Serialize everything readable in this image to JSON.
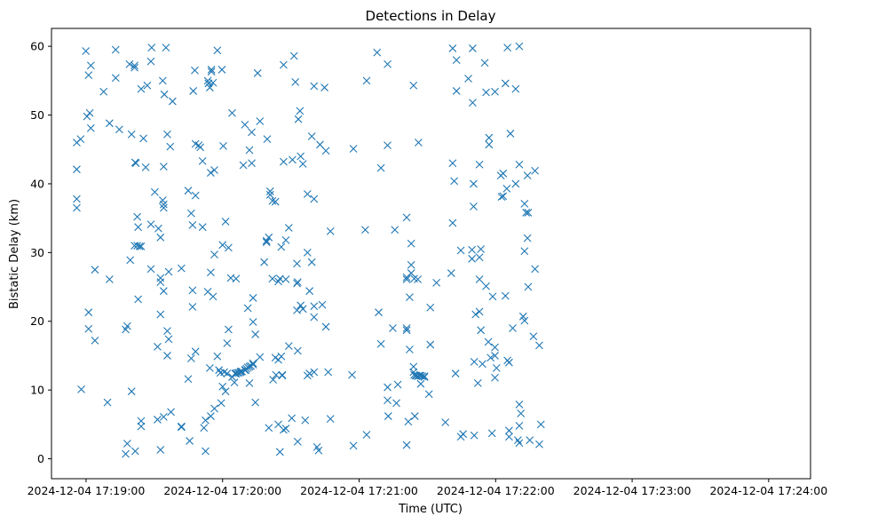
{
  "chart_data": {
    "type": "scatter",
    "title": "Detections in Delay",
    "xlabel": "Time (UTC)",
    "ylabel": "Bistatic Delay (km)",
    "marker": "x",
    "color": "#1f77b4",
    "grid": false,
    "x_unit": "seconds since 2024-12-04 17:19:00 UTC",
    "xlim": [
      -15.2,
      318.4
    ],
    "ylim": [
      -2.9,
      62.6
    ],
    "xticks": [
      {
        "value": 0,
        "label": "2024-12-04 17:19:00"
      },
      {
        "value": 60,
        "label": "2024-12-04 17:20:00"
      },
      {
        "value": 120,
        "label": "2024-12-04 17:21:00"
      },
      {
        "value": 180,
        "label": "2024-12-04 17:22:00"
      },
      {
        "value": 240,
        "label": "2024-12-04 17:23:00"
      },
      {
        "value": 300,
        "label": "2024-12-04 17:24:00"
      }
    ],
    "yticks": [
      {
        "value": 0,
        "label": "0"
      },
      {
        "value": 10,
        "label": "10"
      },
      {
        "value": 20,
        "label": "20"
      },
      {
        "value": 30,
        "label": "30"
      },
      {
        "value": 40,
        "label": "40"
      },
      {
        "value": 50,
        "label": "50"
      },
      {
        "value": 60,
        "label": "60"
      }
    ],
    "points": [
      [
        -4.1,
        46.0
      ],
      [
        -4.1,
        42.1
      ],
      [
        -4.1,
        37.8
      ],
      [
        -4.1,
        36.5
      ],
      [
        -2.4,
        46.5
      ],
      [
        -2.1,
        10.1
      ],
      [
        -0.1,
        59.3
      ],
      [
        0.4,
        49.8
      ],
      [
        1.1,
        55.8
      ],
      [
        1.6,
        50.3
      ],
      [
        1.1,
        21.3
      ],
      [
        1.1,
        18.9
      ],
      [
        2.1,
        57.2
      ],
      [
        2.1,
        48.1
      ],
      [
        3.9,
        27.5
      ],
      [
        3.9,
        17.2
      ],
      [
        7.7,
        53.4
      ],
      [
        9.4,
        8.2
      ],
      [
        10.3,
        26.1
      ],
      [
        10.3,
        48.8
      ],
      [
        13.0,
        59.5
      ],
      [
        13.0,
        55.4
      ],
      [
        14.6,
        47.9
      ],
      [
        17.4,
        0.7
      ],
      [
        17.4,
        18.8
      ],
      [
        18.1,
        2.2
      ],
      [
        18.1,
        19.3
      ],
      [
        19.1,
        57.4
      ],
      [
        19.4,
        28.9
      ],
      [
        20.0,
        47.2
      ],
      [
        20.0,
        9.8
      ],
      [
        21.3,
        57.2
      ],
      [
        21.3,
        56.9
      ],
      [
        21.3,
        31.0
      ],
      [
        21.6,
        43.1
      ],
      [
        21.6,
        1.1
      ],
      [
        21.9,
        43.0
      ],
      [
        22.5,
        35.2
      ],
      [
        22.5,
        31.0
      ],
      [
        22.9,
        33.7
      ],
      [
        22.9,
        23.2
      ],
      [
        23.5,
        30.9
      ],
      [
        24.2,
        53.8
      ],
      [
        24.2,
        30.9
      ],
      [
        24.2,
        5.5
      ],
      [
        24.2,
        4.7
      ],
      [
        25.2,
        46.6
      ],
      [
        26.2,
        42.4
      ],
      [
        26.9,
        54.3
      ],
      [
        28.5,
        57.8
      ],
      [
        28.8,
        59.8
      ],
      [
        28.5,
        34.1
      ],
      [
        28.5,
        27.6
      ],
      [
        30.2,
        38.8
      ],
      [
        31.8,
        33.5
      ],
      [
        31.4,
        16.3
      ],
      [
        31.4,
        5.7
      ],
      [
        32.7,
        26.3
      ],
      [
        32.7,
        25.7
      ],
      [
        32.7,
        32.2
      ],
      [
        32.7,
        21.0
      ],
      [
        32.7,
        1.3
      ],
      [
        33.7,
        55.0
      ],
      [
        33.7,
        37.6
      ],
      [
        34.4,
        53.0
      ],
      [
        34.1,
        42.5
      ],
      [
        34.1,
        36.5
      ],
      [
        34.1,
        37.0
      ],
      [
        34.1,
        24.4
      ],
      [
        34.1,
        6.1
      ],
      [
        35.1,
        59.8
      ],
      [
        35.7,
        47.2
      ],
      [
        35.7,
        18.6
      ],
      [
        35.7,
        15.0
      ],
      [
        36.3,
        27.2
      ],
      [
        36.3,
        17.4
      ],
      [
        37.0,
        45.4
      ],
      [
        37.3,
        6.8
      ],
      [
        38.0,
        52.0
      ],
      [
        41.9,
        27.7
      ],
      [
        41.9,
        4.7
      ],
      [
        41.9,
        4.6
      ],
      [
        44.9,
        39.0
      ],
      [
        44.9,
        11.6
      ],
      [
        45.5,
        2.6
      ],
      [
        46.2,
        35.7
      ],
      [
        46.2,
        14.6
      ],
      [
        46.8,
        34.0
      ],
      [
        46.8,
        24.5
      ],
      [
        46.8,
        22.1
      ],
      [
        47.1,
        53.5
      ],
      [
        47.8,
        56.5
      ],
      [
        48.1,
        45.8
      ],
      [
        48.1,
        38.3
      ],
      [
        48.1,
        15.6
      ],
      [
        49.5,
        45.6
      ],
      [
        50.2,
        45.3
      ],
      [
        51.2,
        33.7
      ],
      [
        51.2,
        43.3
      ],
      [
        51.8,
        4.5
      ],
      [
        52.5,
        1.1
      ],
      [
        52.5,
        5.6
      ],
      [
        53.5,
        55.0
      ],
      [
        53.5,
        24.3
      ],
      [
        53.8,
        54.6
      ],
      [
        54.4,
        54.0
      ],
      [
        54.4,
        13.2
      ],
      [
        54.8,
        41.6
      ],
      [
        54.8,
        27.1
      ],
      [
        54.8,
        6.2
      ],
      [
        55.1,
        56.3
      ],
      [
        55.1,
        56.6
      ],
      [
        55.8,
        54.7
      ],
      [
        55.8,
        23.6
      ],
      [
        56.4,
        42.0
      ],
      [
        56.4,
        29.7
      ],
      [
        56.4,
        7.3
      ],
      [
        57.7,
        59.4
      ],
      [
        57.7,
        14.9
      ],
      [
        58.4,
        12.9
      ],
      [
        59.0,
        12.5
      ],
      [
        59.4,
        8.1
      ],
      [
        59.7,
        56.6
      ],
      [
        60.0,
        31.1
      ],
      [
        60.0,
        10.5
      ],
      [
        60.3,
        45.5
      ],
      [
        60.7,
        12.6
      ],
      [
        61.3,
        34.5
      ],
      [
        61.3,
        9.8
      ],
      [
        62.0,
        12.4
      ],
      [
        62.0,
        16.8
      ],
      [
        62.6,
        30.7
      ],
      [
        62.6,
        18.8
      ],
      [
        63.6,
        26.3
      ],
      [
        64.2,
        11.9
      ],
      [
        64.2,
        50.3
      ],
      [
        65.2,
        11.1
      ],
      [
        65.5,
        12.4
      ],
      [
        65.9,
        26.2
      ],
      [
        65.9,
        12.4
      ],
      [
        66.5,
        12.5
      ],
      [
        67.2,
        12.5
      ],
      [
        67.8,
        12.6
      ],
      [
        68.1,
        12.7
      ],
      [
        68.5,
        12.7
      ],
      [
        69.1,
        42.7
      ],
      [
        69.8,
        48.6
      ],
      [
        69.8,
        12.9
      ],
      [
        70.1,
        12.9
      ],
      [
        70.5,
        13.1
      ],
      [
        71.1,
        21.9
      ],
      [
        71.1,
        13.3
      ],
      [
        71.8,
        44.9
      ],
      [
        71.8,
        11.0
      ],
      [
        71.8,
        13.4
      ],
      [
        72.4,
        13.5
      ],
      [
        72.8,
        43.0
      ],
      [
        72.8,
        47.5
      ],
      [
        73.4,
        23.4
      ],
      [
        73.4,
        13.7
      ],
      [
        73.4,
        13.9
      ],
      [
        73.4,
        19.9
      ],
      [
        74.4,
        8.2
      ],
      [
        74.4,
        18.1
      ],
      [
        75.4,
        56.1
      ],
      [
        76.4,
        14.8
      ],
      [
        76.4,
        49.1
      ],
      [
        78.3,
        28.6
      ],
      [
        79.3,
        31.5
      ],
      [
        79.3,
        31.7
      ],
      [
        79.6,
        46.5
      ],
      [
        80.3,
        32.2
      ],
      [
        80.3,
        4.5
      ],
      [
        80.9,
        38.9
      ],
      [
        80.9,
        38.4
      ],
      [
        81.9,
        37.5
      ],
      [
        81.9,
        26.2
      ],
      [
        82.2,
        11.5
      ],
      [
        83.2,
        37.4
      ],
      [
        83.2,
        14.7
      ],
      [
        83.5,
        12.2
      ],
      [
        84.5,
        25.8
      ],
      [
        84.5,
        14.4
      ],
      [
        84.5,
        5.0
      ],
      [
        85.2,
        26.2
      ],
      [
        85.2,
        1.0
      ],
      [
        85.8,
        30.8
      ],
      [
        85.8,
        14.9
      ],
      [
        86.2,
        12.2
      ],
      [
        86.2,
        12.1
      ],
      [
        86.8,
        43.2
      ],
      [
        86.8,
        57.3
      ],
      [
        86.8,
        4.2
      ],
      [
        87.8,
        31.8
      ],
      [
        87.8,
        26.1
      ],
      [
        87.8,
        4.4
      ],
      [
        89.1,
        33.6
      ],
      [
        89.1,
        16.4
      ],
      [
        90.7,
        43.5
      ],
      [
        90.4,
        5.9
      ],
      [
        91.4,
        58.6
      ],
      [
        92.0,
        54.8
      ],
      [
        92.7,
        25.5
      ],
      [
        92.7,
        28.4
      ],
      [
        92.7,
        21.6
      ],
      [
        93.0,
        25.7
      ],
      [
        93.0,
        15.7
      ],
      [
        93.0,
        2.5
      ],
      [
        93.3,
        49.4
      ],
      [
        94.0,
        50.6
      ],
      [
        94.3,
        44.0
      ],
      [
        94.3,
        22.3
      ],
      [
        95.3,
        42.9
      ],
      [
        95.3,
        21.8
      ],
      [
        96.3,
        5.6
      ],
      [
        97.3,
        30.0
      ],
      [
        97.3,
        38.5
      ],
      [
        97.3,
        12.1
      ],
      [
        98.2,
        24.4
      ],
      [
        98.2,
        12.4
      ],
      [
        99.2,
        46.9
      ],
      [
        99.2,
        28.6
      ],
      [
        100.2,
        54.2
      ],
      [
        100.2,
        37.8
      ],
      [
        100.2,
        22.2
      ],
      [
        100.2,
        20.6
      ],
      [
        100.2,
        12.6
      ],
      [
        101.5,
        1.7
      ],
      [
        102.2,
        1.2
      ],
      [
        102.8,
        45.7
      ],
      [
        103.8,
        22.4
      ],
      [
        104.8,
        54.0
      ],
      [
        105.4,
        44.8
      ],
      [
        105.4,
        19.2
      ],
      [
        106.4,
        12.6
      ],
      [
        107.4,
        33.1
      ],
      [
        107.4,
        5.8
      ],
      [
        116.9,
        12.2
      ],
      [
        117.5,
        45.1
      ],
      [
        117.5,
        1.9
      ],
      [
        122.7,
        33.3
      ],
      [
        123.3,
        55.0
      ],
      [
        123.3,
        3.5
      ],
      [
        127.9,
        59.1
      ],
      [
        128.6,
        21.3
      ],
      [
        129.6,
        16.7
      ],
      [
        129.6,
        42.3
      ],
      [
        132.5,
        57.4
      ],
      [
        132.5,
        45.6
      ],
      [
        132.5,
        10.4
      ],
      [
        132.5,
        8.5
      ],
      [
        132.8,
        6.2
      ],
      [
        134.8,
        19.0
      ],
      [
        135.7,
        33.3
      ],
      [
        136.4,
        8.1
      ],
      [
        137.0,
        10.8
      ],
      [
        140.9,
        35.1
      ],
      [
        140.9,
        26.4
      ],
      [
        140.9,
        26.1
      ],
      [
        140.9,
        19.0
      ],
      [
        140.9,
        18.7
      ],
      [
        140.9,
        2.0
      ],
      [
        141.6,
        5.4
      ],
      [
        142.2,
        23.5
      ],
      [
        142.2,
        15.9
      ],
      [
        142.9,
        31.3
      ],
      [
        142.9,
        28.2
      ],
      [
        142.9,
        27.0
      ],
      [
        143.9,
        54.3
      ],
      [
        143.9,
        13.4
      ],
      [
        143.9,
        12.6
      ],
      [
        144.2,
        26.2
      ],
      [
        144.2,
        12.2
      ],
      [
        144.5,
        6.2
      ],
      [
        144.8,
        12.1
      ],
      [
        145.2,
        12.1
      ],
      [
        145.8,
        26.1
      ],
      [
        145.8,
        12.0
      ],
      [
        146.1,
        46.0
      ],
      [
        146.5,
        12.1
      ],
      [
        147.1,
        12.1
      ],
      [
        147.1,
        10.9
      ],
      [
        147.8,
        12.0
      ],
      [
        148.7,
        11.9
      ],
      [
        148.7,
        12.0
      ],
      [
        150.7,
        9.4
      ],
      [
        151.3,
        22.0
      ],
      [
        151.3,
        16.6
      ],
      [
        154.0,
        25.6
      ],
      [
        157.9,
        5.3
      ],
      [
        160.5,
        27.0
      ],
      [
        161.1,
        43.0
      ],
      [
        161.1,
        34.3
      ],
      [
        161.1,
        59.7
      ],
      [
        161.8,
        40.4
      ],
      [
        162.4,
        12.4
      ],
      [
        162.8,
        53.5
      ],
      [
        162.8,
        58.0
      ],
      [
        164.7,
        3.2
      ],
      [
        164.7,
        30.3
      ],
      [
        165.7,
        3.6
      ],
      [
        168.0,
        55.3
      ],
      [
        169.6,
        29.1
      ],
      [
        169.6,
        30.4
      ],
      [
        169.9,
        59.7
      ],
      [
        169.9,
        51.8
      ],
      [
        170.3,
        40.0
      ],
      [
        170.3,
        36.7
      ],
      [
        170.6,
        14.1
      ],
      [
        170.6,
        3.4
      ],
      [
        171.2,
        21.0
      ],
      [
        172.2,
        11.0
      ],
      [
        172.9,
        26.1
      ],
      [
        172.9,
        21.4
      ],
      [
        172.9,
        42.8
      ],
      [
        172.9,
        29.3
      ],
      [
        173.5,
        30.5
      ],
      [
        173.5,
        18.7
      ],
      [
        174.2,
        13.8
      ],
      [
        175.2,
        57.6
      ],
      [
        175.8,
        25.1
      ],
      [
        175.8,
        53.3
      ],
      [
        176.8,
        17.0
      ],
      [
        177.1,
        46.7
      ],
      [
        177.1,
        45.7
      ],
      [
        177.8,
        14.7
      ],
      [
        178.4,
        3.7
      ],
      [
        178.7,
        23.6
      ],
      [
        179.7,
        53.4
      ],
      [
        179.7,
        16.2
      ],
      [
        179.7,
        15.0
      ],
      [
        179.7,
        11.8
      ],
      [
        180.4,
        13.2
      ],
      [
        182.3,
        41.2
      ],
      [
        182.6,
        38.1
      ],
      [
        183.3,
        41.5
      ],
      [
        183.3,
        38.2
      ],
      [
        184.3,
        54.6
      ],
      [
        184.3,
        23.7
      ],
      [
        184.9,
        39.3
      ],
      [
        185.2,
        59.8
      ],
      [
        185.2,
        14.3
      ],
      [
        185.9,
        14.0
      ],
      [
        185.9,
        3.2
      ],
      [
        185.9,
        4.1
      ],
      [
        186.5,
        47.3
      ],
      [
        187.5,
        19.0
      ],
      [
        188.8,
        40.0
      ],
      [
        188.8,
        53.8
      ],
      [
        189.8,
        2.7
      ],
      [
        190.4,
        60.0
      ],
      [
        190.4,
        42.8
      ],
      [
        190.4,
        7.9
      ],
      [
        190.4,
        4.8
      ],
      [
        190.4,
        2.3
      ],
      [
        191.1,
        6.6
      ],
      [
        192.1,
        20.7
      ],
      [
        192.7,
        37.1
      ],
      [
        192.7,
        30.2
      ],
      [
        192.7,
        20.1
      ],
      [
        193.4,
        35.8
      ],
      [
        194.0,
        41.2
      ],
      [
        194.0,
        32.1
      ],
      [
        194.3,
        25.0
      ],
      [
        194.3,
        35.8
      ],
      [
        195.0,
        2.7
      ],
      [
        196.6,
        17.8
      ],
      [
        197.3,
        27.6
      ],
      [
        197.3,
        41.9
      ],
      [
        199.2,
        16.5
      ],
      [
        199.2,
        2.1
      ],
      [
        199.9,
        5.0
      ]
    ]
  }
}
